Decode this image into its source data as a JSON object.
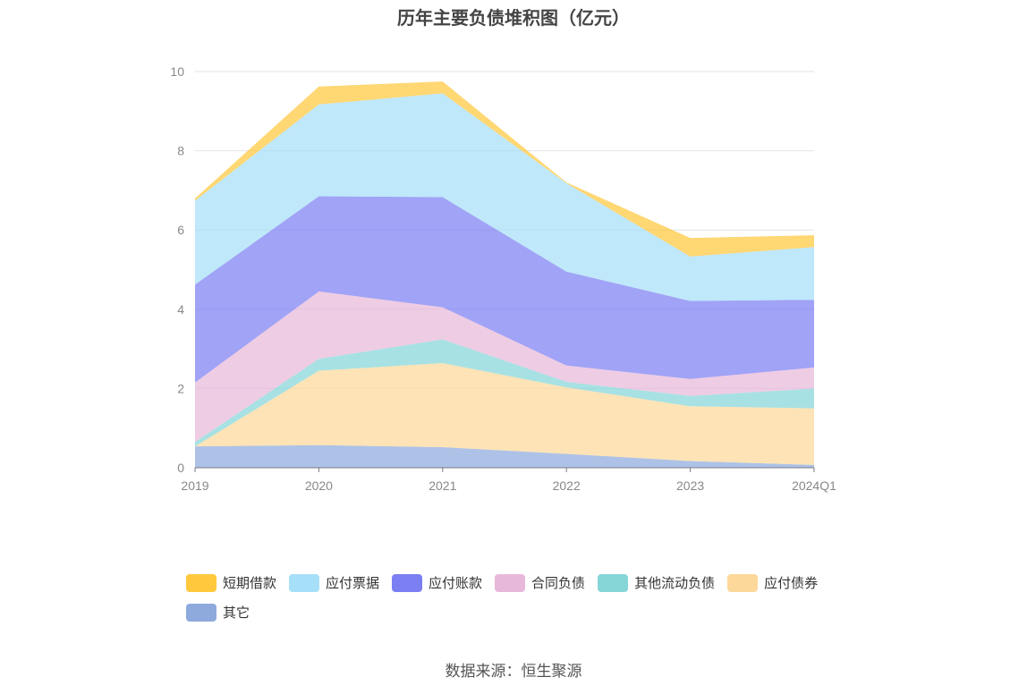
{
  "chart_data": {
    "type": "area",
    "stacked": true,
    "title": "历年主要负债堆积图（亿元）",
    "categories": [
      "2019",
      "2020",
      "2021",
      "2022",
      "2023",
      "2024Q1"
    ],
    "ylim": [
      0,
      10
    ],
    "yticks": [
      0,
      2,
      4,
      6,
      8,
      10
    ],
    "ytick_labels": [
      "0",
      "2",
      "4",
      "6",
      "8",
      "10"
    ],
    "grid": true,
    "legend_position": "bottom",
    "series": [
      {
        "name": "其它",
        "color": "#8eaadc",
        "values": [
          0.54,
          0.57,
          0.52,
          0.35,
          0.17,
          0.07
        ]
      },
      {
        "name": "应付债券",
        "color": "#fcd89a",
        "values": [
          0.0,
          1.88,
          2.12,
          1.68,
          1.38,
          1.43
        ]
      },
      {
        "name": "其他流动负债",
        "color": "#86d6d8",
        "values": [
          0.11,
          0.3,
          0.6,
          0.14,
          0.26,
          0.5
        ]
      },
      {
        "name": "合同负债",
        "color": "#e8b8da",
        "values": [
          1.5,
          1.7,
          0.81,
          0.41,
          0.43,
          0.53
        ]
      },
      {
        "name": "应付账款",
        "color": "#7b7ff2",
        "values": [
          2.47,
          2.4,
          2.78,
          2.37,
          1.97,
          1.71
        ]
      },
      {
        "name": "应付票据",
        "color": "#a6dff8",
        "values": [
          2.12,
          2.32,
          2.62,
          2.23,
          1.12,
          1.33
        ]
      },
      {
        "name": "短期借款",
        "color": "#ffc83d",
        "values": [
          0.06,
          0.45,
          0.3,
          0.02,
          0.47,
          0.3
        ]
      }
    ],
    "legend_order": [
      "短期借款",
      "应付票据",
      "应付账款",
      "合同负债",
      "其他流动负债",
      "应付债券",
      "其它"
    ]
  },
  "source_text": "数据来源：恒生聚源"
}
